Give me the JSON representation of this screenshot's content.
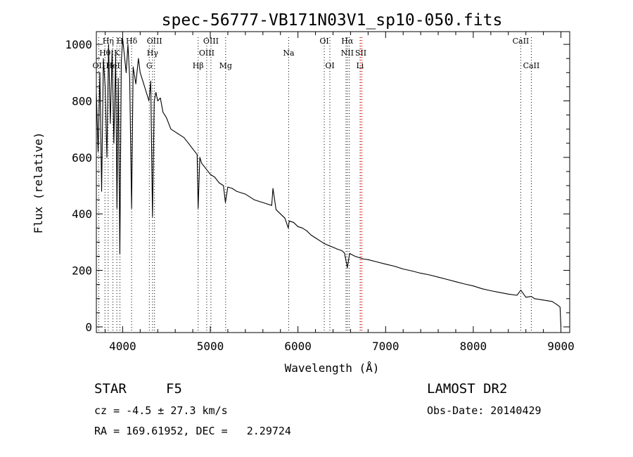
{
  "chart_data": {
    "type": "line",
    "title": "spec-56777-VB171N03V1_sp10-050.fits",
    "xlabel": "Wavelength (Å)",
    "ylabel": "Flux (relative)",
    "xlim": [
      3700,
      9100
    ],
    "ylim": [
      -20,
      1045
    ],
    "xticks": [
      4000,
      5000,
      6000,
      7000,
      8000,
      9000
    ],
    "yticks": [
      0,
      200,
      400,
      600,
      800,
      1000
    ],
    "grid": false,
    "series": [
      {
        "color": "#000000",
        "x": [
          3700,
          3720,
          3740,
          3760,
          3780,
          3800,
          3820,
          3840,
          3860,
          3880,
          3900,
          3920,
          3935,
          3950,
          3968,
          3985,
          4000,
          4020,
          4040,
          4060,
          4080,
          4102,
          4120,
          4150,
          4180,
          4200,
          4230,
          4260,
          4300,
          4320,
          4340,
          4360,
          4380,
          4400,
          4430,
          4460,
          4500,
          4550,
          4600,
          4650,
          4700,
          4750,
          4800,
          4850,
          4861,
          4880,
          4900,
          4950,
          5000,
          5050,
          5100,
          5150,
          5172,
          5200,
          5250,
          5300,
          5400,
          5500,
          5600,
          5700,
          5715,
          5750,
          5800,
          5850,
          5890,
          5900,
          5950,
          6000,
          6050,
          6100,
          6150,
          6200,
          6250,
          6300,
          6350,
          6400,
          6450,
          6500,
          6530,
          6563,
          6590,
          6650,
          6700,
          6750,
          6800,
          6900,
          7000,
          7100,
          7200,
          7300,
          7400,
          7500,
          7600,
          7700,
          7800,
          7900,
          8000,
          8100,
          8200,
          8300,
          8400,
          8498,
          8542,
          8600,
          8662,
          8700,
          8800,
          8900,
          8950,
          8990,
          9000
        ],
        "y": [
          830,
          620,
          900,
          480,
          950,
          850,
          600,
          1000,
          720,
          980,
          650,
          960,
          420,
          880,
          260,
          940,
          1020,
          960,
          900,
          1000,
          880,
          420,
          920,
          860,
          950,
          900,
          870,
          840,
          800,
          870,
          390,
          800,
          830,
          800,
          810,
          760,
          740,
          700,
          690,
          680,
          670,
          650,
          630,
          610,
          420,
          600,
          580,
          560,
          540,
          530,
          510,
          500,
          440,
          495,
          490,
          480,
          470,
          450,
          440,
          430,
          490,
          415,
          400,
          385,
          350,
          375,
          370,
          355,
          350,
          340,
          325,
          315,
          305,
          295,
          288,
          282,
          275,
          270,
          262,
          210,
          260,
          250,
          245,
          240,
          238,
          230,
          222,
          215,
          205,
          198,
          190,
          184,
          176,
          168,
          160,
          152,
          145,
          135,
          128,
          122,
          116,
          112,
          130,
          105,
          108,
          100,
          95,
          90,
          80,
          70,
          0
        ]
      }
    ],
    "lines": [
      {
        "name": "OII",
        "x": 3727,
        "color": "#000000"
      },
      {
        "name": "Hθ",
        "x": 3798,
        "color": "#000000"
      },
      {
        "name": "Hη",
        "x": 3835,
        "color": "#000000"
      },
      {
        "name": "HeI",
        "x": 3889,
        "color": "#000000"
      },
      {
        "name": "K",
        "x": 3934,
        "color": "#000000"
      },
      {
        "name": "H",
        "x": 3969,
        "color": "#000000"
      },
      {
        "name": "Hδ",
        "x": 4102,
        "color": "#000000"
      },
      {
        "name": "G",
        "x": 4304,
        "color": "#000000"
      },
      {
        "name": "Hγ",
        "x": 4341,
        "color": "#000000"
      },
      {
        "name": "OIII",
        "x": 4363,
        "color": "#000000"
      },
      {
        "name": "Hβ",
        "x": 4861,
        "color": "#000000"
      },
      {
        "name": "OIII",
        "x": 4959,
        "color": "#000000"
      },
      {
        "name": "OIII",
        "x": 5007,
        "color": "#000000"
      },
      {
        "name": "Mg",
        "x": 5175,
        "color": "#000000"
      },
      {
        "name": "Na",
        "x": 5894,
        "color": "#000000"
      },
      {
        "name": "OI",
        "x": 6300,
        "color": "#000000"
      },
      {
        "name": "OI",
        "x": 6364,
        "color": "#000000"
      },
      {
        "name": "NII",
        "x": 6548,
        "color": "#000000"
      },
      {
        "name": "Hα",
        "x": 6563,
        "color": "#000000"
      },
      {
        "name": "NII",
        "x": 6584,
        "color": "#000000"
      },
      {
        "name": "Li",
        "x": 6708,
        "color": "#cc0000"
      },
      {
        "name": "SII",
        "x": 6717,
        "color": "#cc0000"
      },
      {
        "name": "SII",
        "x": 6731,
        "color": "#cc0000"
      },
      {
        "name": "CaII",
        "x": 8542,
        "color": "#000000"
      },
      {
        "name": "CaII",
        "x": 8662,
        "color": "#000000"
      }
    ],
    "line_labels": [
      {
        "text": "Hη",
        "x": 3835,
        "row": 1
      },
      {
        "text": "H",
        "x": 3969,
        "row": 1
      },
      {
        "text": "Hδ",
        "x": 4102,
        "row": 1
      },
      {
        "text": "OIII",
        "x": 4363,
        "row": 1
      },
      {
        "text": "OIII",
        "x": 5007,
        "row": 1
      },
      {
        "text": "OI",
        "x": 6300,
        "row": 1
      },
      {
        "text": "Hα",
        "x": 6563,
        "row": 1
      },
      {
        "text": "CaII",
        "x": 8542,
        "row": 1
      },
      {
        "text": "Hθ",
        "x": 3798,
        "row": 2
      },
      {
        "text": "K",
        "x": 3934,
        "row": 2
      },
      {
        "text": "Hγ",
        "x": 4341,
        "row": 2
      },
      {
        "text": "OIII",
        "x": 4959,
        "row": 2
      },
      {
        "text": "Na",
        "x": 5894,
        "row": 2
      },
      {
        "text": "NII",
        "x": 6563,
        "row": 2
      },
      {
        "text": "SII",
        "x": 6717,
        "row": 2
      },
      {
        "text": "OII",
        "x": 3727,
        "row": 3
      },
      {
        "text": "HeI",
        "x": 3889,
        "row": 3
      },
      {
        "text": "G",
        "x": 4304,
        "row": 3
      },
      {
        "text": "Hβ",
        "x": 4861,
        "row": 3
      },
      {
        "text": "Mg",
        "x": 5175,
        "row": 3
      },
      {
        "text": "OI",
        "x": 6364,
        "row": 3
      },
      {
        "text": "Li",
        "x": 6708,
        "row": 3
      },
      {
        "text": "CaII",
        "x": 8662,
        "row": 3
      }
    ]
  },
  "info": {
    "object_class": "STAR",
    "subclass": "F5",
    "survey": "LAMOST DR2",
    "redshift": "cz = -4.5 ± 27.3 km/s",
    "obs_date": "Obs-Date: 20140429",
    "coordinates": "RA = 169.61952, DEC =   2.29724"
  }
}
